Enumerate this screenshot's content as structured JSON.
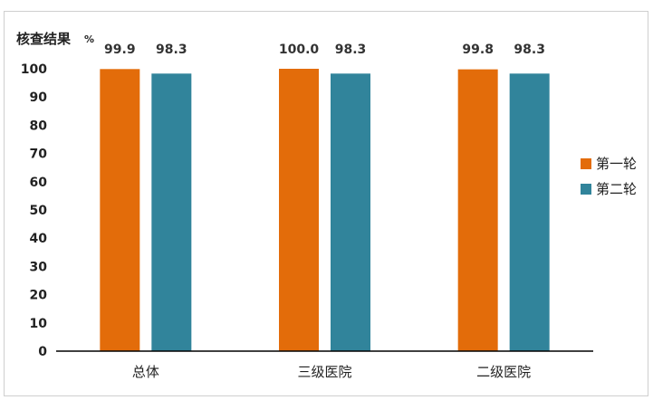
{
  "chart_data": {
    "type": "bar",
    "ylabel": "核查结果",
    "yunit": "%",
    "ylim": [
      0,
      100
    ],
    "yticks": [
      0,
      10,
      20,
      30,
      40,
      50,
      60,
      70,
      80,
      90,
      100
    ],
    "categories": [
      "总体",
      "三级医院",
      "二级医院"
    ],
    "series": [
      {
        "name": "第一轮",
        "color": "#E36C0A",
        "values": [
          99.9,
          100.0,
          99.8
        ],
        "labels": [
          "99.9",
          "100.0",
          "99.8"
        ]
      },
      {
        "name": "第二轮",
        "color": "#31849B",
        "values": [
          98.3,
          98.3,
          98.3
        ],
        "labels": [
          "98.3",
          "98.3",
          "98.3"
        ]
      }
    ],
    "grid": false,
    "legend_position": "right"
  }
}
